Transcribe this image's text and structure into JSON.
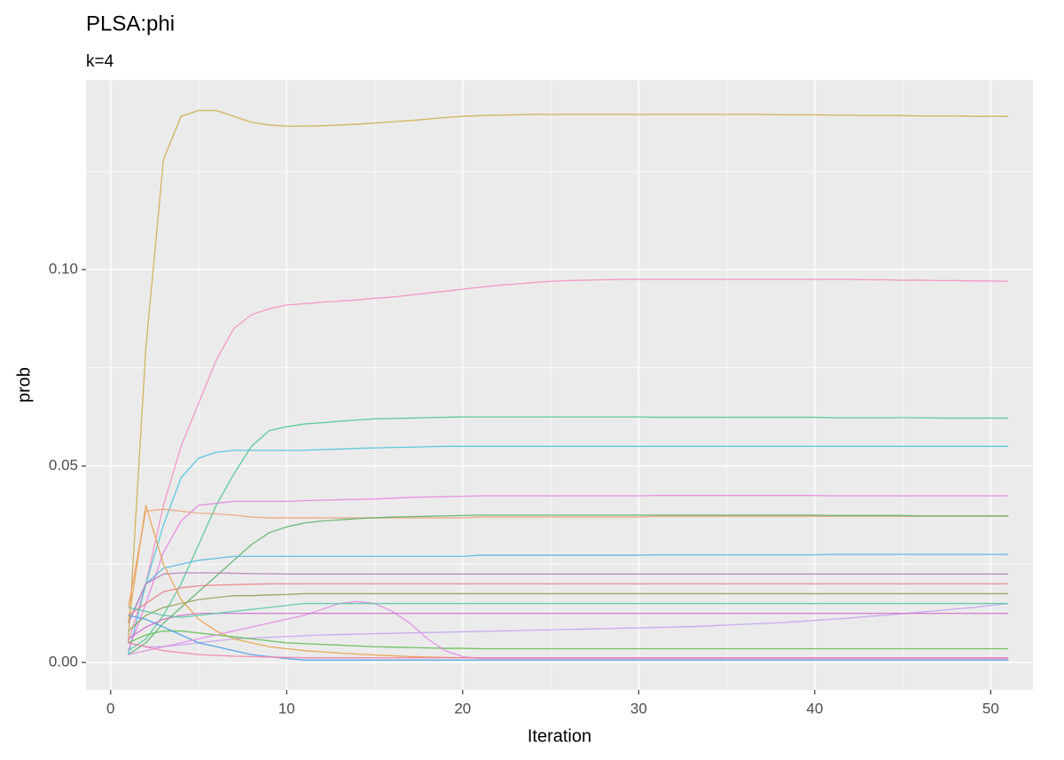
{
  "chart_data": {
    "type": "line",
    "title": "PLSA:phi",
    "subtitle": "k=4",
    "x_label": "Iteration",
    "y_label": "prob",
    "x": [
      1,
      2,
      3,
      4,
      5,
      6,
      7,
      8,
      9,
      10,
      11,
      12,
      13,
      14,
      15,
      16,
      17,
      18,
      19,
      20,
      21,
      22,
      23,
      24,
      25,
      26,
      27,
      28,
      29,
      30,
      31,
      32,
      33,
      34,
      35,
      36,
      37,
      38,
      39,
      40,
      41,
      42,
      43,
      44,
      45,
      46,
      47,
      48,
      49,
      50,
      51
    ],
    "xlim": [
      -1.4,
      52.4
    ],
    "xticks": [
      0,
      10,
      20,
      30,
      40,
      50
    ],
    "xminor": [
      5,
      15,
      25,
      35,
      45
    ],
    "ylim": [
      -0.007,
      0.1483
    ],
    "yticks": [
      {
        "value": 0,
        "label": "0.00"
      },
      {
        "value": 0.05,
        "label": "0.05"
      },
      {
        "value": 0.1,
        "label": "0.10"
      }
    ],
    "yminor": [
      0.025,
      0.075,
      0.125
    ],
    "grid": true,
    "series": [
      {
        "color": "#CFAE4C",
        "values": [
          0.005,
          0.08,
          0.128,
          0.139,
          0.1405,
          0.1405,
          0.139,
          0.1375,
          0.1368,
          0.1365,
          0.1365,
          0.1366,
          0.1368,
          0.137,
          0.1373,
          0.1376,
          0.1379,
          0.1383,
          0.1387,
          0.139,
          0.1392,
          0.1393,
          0.1394,
          0.1395,
          0.1395,
          0.1395,
          0.1395,
          0.1395,
          0.1395,
          0.1395,
          0.1395,
          0.1395,
          0.1395,
          0.1395,
          0.1395,
          0.1395,
          0.1395,
          0.1394,
          0.1394,
          0.1394,
          0.1393,
          0.1393,
          0.1392,
          0.1392,
          0.1392,
          0.1391,
          0.1391,
          0.1391,
          0.139,
          0.139,
          0.139
        ]
      },
      {
        "color": "#F48FC4",
        "values": [
          0.005,
          0.02,
          0.04,
          0.055,
          0.066,
          0.077,
          0.085,
          0.0885,
          0.09,
          0.091,
          0.0913,
          0.0917,
          0.092,
          0.0923,
          0.0927,
          0.093,
          0.0935,
          0.094,
          0.0945,
          0.095,
          0.0955,
          0.096,
          0.0963,
          0.0967,
          0.097,
          0.0972,
          0.0973,
          0.0974,
          0.0975,
          0.0975,
          0.0975,
          0.0975,
          0.0975,
          0.0975,
          0.0975,
          0.0975,
          0.0975,
          0.0975,
          0.0975,
          0.0975,
          0.0975,
          0.0975,
          0.0974,
          0.0974,
          0.0973,
          0.0973,
          0.0972,
          0.0972,
          0.0971,
          0.0971,
          0.097
        ]
      },
      {
        "color": "#4DC98F",
        "values": [
          0.003,
          0.006,
          0.012,
          0.02,
          0.03,
          0.04,
          0.048,
          0.055,
          0.059,
          0.06,
          0.0607,
          0.061,
          0.0614,
          0.0617,
          0.062,
          0.0621,
          0.0622,
          0.0623,
          0.0624,
          0.0625,
          0.0625,
          0.0625,
          0.0625,
          0.0625,
          0.0625,
          0.0625,
          0.0625,
          0.0625,
          0.0625,
          0.0625,
          0.0624,
          0.0624,
          0.0624,
          0.0624,
          0.0624,
          0.0624,
          0.0624,
          0.0624,
          0.0624,
          0.0624,
          0.0623,
          0.0623,
          0.0623,
          0.0623,
          0.0623,
          0.0623,
          0.0622,
          0.0622,
          0.0622,
          0.0622,
          0.0622
        ]
      },
      {
        "color": "#4FC3DE",
        "values": [
          0.002,
          0.02,
          0.035,
          0.047,
          0.052,
          0.0535,
          0.054,
          0.054,
          0.054,
          0.054,
          0.054,
          0.0542,
          0.0543,
          0.0545,
          0.0546,
          0.0547,
          0.0548,
          0.0549,
          0.055,
          0.055,
          0.055,
          0.055,
          0.055,
          0.055,
          0.055,
          0.055,
          0.055,
          0.055,
          0.055,
          0.055,
          0.055,
          0.055,
          0.055,
          0.055,
          0.055,
          0.055,
          0.055,
          0.055,
          0.055,
          0.055,
          0.055,
          0.055,
          0.055,
          0.055,
          0.055,
          0.055,
          0.055,
          0.055,
          0.055,
          0.055,
          0.055
        ]
      },
      {
        "color": "#E884E2",
        "values": [
          0.003,
          0.015,
          0.028,
          0.036,
          0.04,
          0.0405,
          0.041,
          0.041,
          0.041,
          0.041,
          0.0412,
          0.0413,
          0.0414,
          0.0415,
          0.0416,
          0.0418,
          0.042,
          0.0421,
          0.0422,
          0.0423,
          0.0424,
          0.0424,
          0.0424,
          0.0424,
          0.0424,
          0.0424,
          0.0424,
          0.0424,
          0.0424,
          0.0424,
          0.0425,
          0.0425,
          0.0425,
          0.0425,
          0.0425,
          0.0425,
          0.0425,
          0.0425,
          0.0425,
          0.0425,
          0.0424,
          0.0424,
          0.0424,
          0.0424,
          0.0424,
          0.0424,
          0.0424,
          0.0424,
          0.0424,
          0.0424,
          0.0424
        ]
      },
      {
        "color": "#EFA47E",
        "values": [
          0.014,
          0.0385,
          0.039,
          0.0385,
          0.038,
          0.0378,
          0.0375,
          0.037,
          0.0368,
          0.0368,
          0.0368,
          0.0368,
          0.0368,
          0.0368,
          0.0368,
          0.0368,
          0.0368,
          0.0368,
          0.0368,
          0.0368,
          0.037,
          0.037,
          0.037,
          0.037,
          0.037,
          0.037,
          0.037,
          0.037,
          0.037,
          0.037,
          0.0372,
          0.0372,
          0.0372,
          0.0372,
          0.0372,
          0.0372,
          0.0372,
          0.0372,
          0.0372,
          0.0372,
          0.0372,
          0.0372,
          0.0372,
          0.0372,
          0.0372,
          0.0372,
          0.0372,
          0.0372,
          0.0372,
          0.0372,
          0.0372
        ]
      },
      {
        "color": "#5CB46B",
        "values": [
          0.002,
          0.005,
          0.01,
          0.014,
          0.018,
          0.022,
          0.026,
          0.03,
          0.033,
          0.0345,
          0.0355,
          0.036,
          0.0363,
          0.0366,
          0.0368,
          0.037,
          0.0371,
          0.0372,
          0.0373,
          0.0374,
          0.0375,
          0.0375,
          0.0375,
          0.0375,
          0.0375,
          0.0375,
          0.0375,
          0.0375,
          0.0375,
          0.0375,
          0.0375,
          0.0375,
          0.0375,
          0.0375,
          0.0375,
          0.0375,
          0.0375,
          0.0375,
          0.0375,
          0.0375,
          0.0374,
          0.0374,
          0.0374,
          0.0374,
          0.0374,
          0.0373,
          0.0373,
          0.0373,
          0.0373,
          0.0373,
          0.0373
        ]
      },
      {
        "color": "#55B6E6",
        "values": [
          0.01,
          0.02,
          0.024,
          0.025,
          0.026,
          0.0265,
          0.027,
          0.027,
          0.027,
          0.027,
          0.027,
          0.027,
          0.027,
          0.027,
          0.027,
          0.027,
          0.027,
          0.027,
          0.027,
          0.027,
          0.0273,
          0.0273,
          0.0273,
          0.0273,
          0.0273,
          0.0273,
          0.0273,
          0.0273,
          0.0273,
          0.0273,
          0.0274,
          0.0274,
          0.0274,
          0.0274,
          0.0274,
          0.0274,
          0.0274,
          0.0274,
          0.0274,
          0.0274,
          0.0275,
          0.0275,
          0.0275,
          0.0275,
          0.0275,
          0.0275,
          0.0275,
          0.0275,
          0.0275,
          0.0275,
          0.0275
        ]
      },
      {
        "color": "#B980B8",
        "values": [
          0.01,
          0.02,
          0.0225,
          0.0228,
          0.0228,
          0.0228,
          0.0227,
          0.0226,
          0.0226,
          0.0225,
          0.0225,
          0.0225,
          0.0225,
          0.0225,
          0.0225,
          0.0225,
          0.0225,
          0.0225,
          0.0225,
          0.0225,
          0.0225,
          0.0225,
          0.0225,
          0.0225,
          0.0225,
          0.0225,
          0.0225,
          0.0225,
          0.0225,
          0.0225,
          0.0225,
          0.0225,
          0.0225,
          0.0225,
          0.0225,
          0.0225,
          0.0225,
          0.0225,
          0.0225,
          0.0225,
          0.0225,
          0.0225,
          0.0225,
          0.0225,
          0.0225,
          0.0225,
          0.0225,
          0.0225,
          0.0225,
          0.0225,
          0.0225
        ]
      },
      {
        "color": "#EC7F86",
        "values": [
          0.012,
          0.015,
          0.018,
          0.019,
          0.0195,
          0.0197,
          0.0198,
          0.0199,
          0.02,
          0.02,
          0.02,
          0.02,
          0.02,
          0.02,
          0.02,
          0.02,
          0.02,
          0.02,
          0.02,
          0.02,
          0.02,
          0.02,
          0.02,
          0.02,
          0.02,
          0.02,
          0.02,
          0.02,
          0.02,
          0.02,
          0.02,
          0.02,
          0.02,
          0.02,
          0.02,
          0.02,
          0.02,
          0.02,
          0.02,
          0.02,
          0.02,
          0.02,
          0.02,
          0.02,
          0.02,
          0.02,
          0.02,
          0.02,
          0.02,
          0.02,
          0.02
        ]
      },
      {
        "color": "#8DA35A",
        "values": [
          0.008,
          0.012,
          0.014,
          0.015,
          0.016,
          0.0165,
          0.017,
          0.017,
          0.0172,
          0.0173,
          0.0175,
          0.0175,
          0.0175,
          0.0175,
          0.0175,
          0.0175,
          0.0175,
          0.0175,
          0.0175,
          0.0175,
          0.0175,
          0.0175,
          0.0175,
          0.0175,
          0.0175,
          0.0175,
          0.0175,
          0.0175,
          0.0175,
          0.0175,
          0.0175,
          0.0175,
          0.0175,
          0.0175,
          0.0175,
          0.0175,
          0.0175,
          0.0175,
          0.0175,
          0.0175,
          0.0175,
          0.0175,
          0.0175,
          0.0175,
          0.0175,
          0.0175,
          0.0175,
          0.0175,
          0.0175,
          0.0175,
          0.0175
        ]
      },
      {
        "color": "#C5A2F2",
        "values": [
          0.005,
          0.004,
          0.004,
          0.0045,
          0.005,
          0.0055,
          0.006,
          0.0062,
          0.0064,
          0.0066,
          0.0068,
          0.007,
          0.0071,
          0.0072,
          0.0073,
          0.0074,
          0.0075,
          0.0076,
          0.0077,
          0.0078,
          0.0079,
          0.008,
          0.0081,
          0.0082,
          0.0083,
          0.0084,
          0.0085,
          0.0086,
          0.0087,
          0.0088,
          0.0089,
          0.009,
          0.0091,
          0.0093,
          0.0095,
          0.0097,
          0.0099,
          0.0101,
          0.0104,
          0.0107,
          0.011,
          0.0113,
          0.0117,
          0.012,
          0.0124,
          0.0128,
          0.0132,
          0.0136,
          0.014,
          0.0145,
          0.015
        ]
      },
      {
        "color": "#E9A24B",
        "values": [
          0.01,
          0.04,
          0.025,
          0.016,
          0.011,
          0.008,
          0.006,
          0.005,
          0.004,
          0.0035,
          0.003,
          0.0027,
          0.0024,
          0.0021,
          0.0019,
          0.0017,
          0.0015,
          0.0014,
          0.0013,
          0.0012,
          0.0011,
          0.0011,
          0.0011,
          0.0011,
          0.0011,
          0.0011,
          0.0011,
          0.0011,
          0.0011,
          0.0011,
          0.0011,
          0.0011,
          0.0011,
          0.0011,
          0.0011,
          0.0011,
          0.0011,
          0.0011,
          0.0011,
          0.0011,
          0.0011,
          0.0011,
          0.0011,
          0.0011,
          0.0011,
          0.0011,
          0.0011,
          0.0011,
          0.0011,
          0.0011,
          0.0011
        ]
      },
      {
        "color": "#61BE4F",
        "values": [
          0.005,
          0.007,
          0.008,
          0.008,
          0.0075,
          0.007,
          0.0065,
          0.006,
          0.0055,
          0.005,
          0.0048,
          0.0046,
          0.0044,
          0.0042,
          0.004,
          0.0039,
          0.0038,
          0.0037,
          0.0036,
          0.0036,
          0.0035,
          0.0035,
          0.0035,
          0.0035,
          0.0035,
          0.0035,
          0.0035,
          0.0035,
          0.0035,
          0.0035,
          0.0035,
          0.0035,
          0.0035,
          0.0035,
          0.0035,
          0.0035,
          0.0035,
          0.0035,
          0.0035,
          0.0035,
          0.0035,
          0.0035,
          0.0035,
          0.0035,
          0.0035,
          0.0035,
          0.0035,
          0.0035,
          0.0035,
          0.0035,
          0.0035
        ]
      },
      {
        "color": "#4E9FE6",
        "values": [
          0.012,
          0.011,
          0.009,
          0.007,
          0.005,
          0.004,
          0.003,
          0.002,
          0.0015,
          0.001,
          0.0006,
          0.0006,
          0.0006,
          0.0006,
          0.0006,
          0.0006,
          0.0006,
          0.0006,
          0.0006,
          0.0006,
          0.0006,
          0.0006,
          0.0006,
          0.0006,
          0.0006,
          0.0006,
          0.0006,
          0.0006,
          0.0006,
          0.0006,
          0.0006,
          0.0006,
          0.0006,
          0.0006,
          0.0006,
          0.0006,
          0.0006,
          0.0006,
          0.0006,
          0.0006,
          0.0006,
          0.0006,
          0.0006,
          0.0006,
          0.0006,
          0.0006,
          0.0006,
          0.0006,
          0.0006,
          0.0006,
          0.0006
        ]
      },
      {
        "color": "#E38CE6",
        "values": [
          0.002,
          0.003,
          0.004,
          0.005,
          0.006,
          0.007,
          0.008,
          0.009,
          0.01,
          0.011,
          0.012,
          0.0135,
          0.015,
          0.0155,
          0.015,
          0.013,
          0.01,
          0.006,
          0.003,
          0.0015,
          0.001,
          0.001,
          0.001,
          0.001,
          0.001,
          0.001,
          0.001,
          0.001,
          0.001,
          0.001,
          0.001,
          0.001,
          0.001,
          0.001,
          0.001,
          0.001,
          0.001,
          0.001,
          0.001,
          0.001,
          0.001,
          0.001,
          0.001,
          0.001,
          0.001,
          0.001,
          0.001,
          0.001,
          0.001,
          0.001,
          0.001
        ]
      },
      {
        "color": "#CF6FC9",
        "values": [
          0.006,
          0.009,
          0.011,
          0.012,
          0.0125,
          0.0125,
          0.0125,
          0.0125,
          0.0125,
          0.0125,
          0.0125,
          0.0125,
          0.0125,
          0.0125,
          0.0125,
          0.0125,
          0.0125,
          0.0125,
          0.0125,
          0.0125,
          0.0125,
          0.0125,
          0.0125,
          0.0125,
          0.0125,
          0.0125,
          0.0125,
          0.0125,
          0.0125,
          0.0125,
          0.0125,
          0.0125,
          0.0125,
          0.0125,
          0.0125,
          0.0125,
          0.0125,
          0.0125,
          0.0125,
          0.0125,
          0.0125,
          0.0125,
          0.0125,
          0.0125,
          0.0125,
          0.0125,
          0.0125,
          0.0125,
          0.0125,
          0.0125,
          0.0125
        ]
      },
      {
        "color": "#5BC8A8",
        "values": [
          0.014,
          0.013,
          0.012,
          0.0115,
          0.012,
          0.0125,
          0.013,
          0.0135,
          0.014,
          0.0145,
          0.015,
          0.015,
          0.015,
          0.015,
          0.015,
          0.015,
          0.015,
          0.015,
          0.015,
          0.015,
          0.015,
          0.015,
          0.015,
          0.015,
          0.015,
          0.015,
          0.015,
          0.015,
          0.015,
          0.015,
          0.015,
          0.015,
          0.015,
          0.015,
          0.015,
          0.015,
          0.015,
          0.015,
          0.015,
          0.015,
          0.015,
          0.015,
          0.015,
          0.015,
          0.015,
          0.015,
          0.015,
          0.015,
          0.015,
          0.015,
          0.015
        ]
      },
      {
        "color": "#F47FA8",
        "values": [
          0.005,
          0.004,
          0.003,
          0.0025,
          0.002,
          0.0018,
          0.0016,
          0.0015,
          0.0014,
          0.0013,
          0.0012,
          0.0012,
          0.0012,
          0.0012,
          0.0012,
          0.0012,
          0.0012,
          0.0012,
          0.0012,
          0.0012,
          0.0012,
          0.0012,
          0.0012,
          0.0012,
          0.0012,
          0.0012,
          0.0012,
          0.0012,
          0.0012,
          0.0012,
          0.0012,
          0.0012,
          0.0012,
          0.0012,
          0.0012,
          0.0012,
          0.0012,
          0.0012,
          0.0012,
          0.0012,
          0.0012,
          0.0012,
          0.0012,
          0.0012,
          0.0012,
          0.0012,
          0.0012,
          0.0012,
          0.0012,
          0.0012,
          0.0012
        ]
      }
    ]
  }
}
